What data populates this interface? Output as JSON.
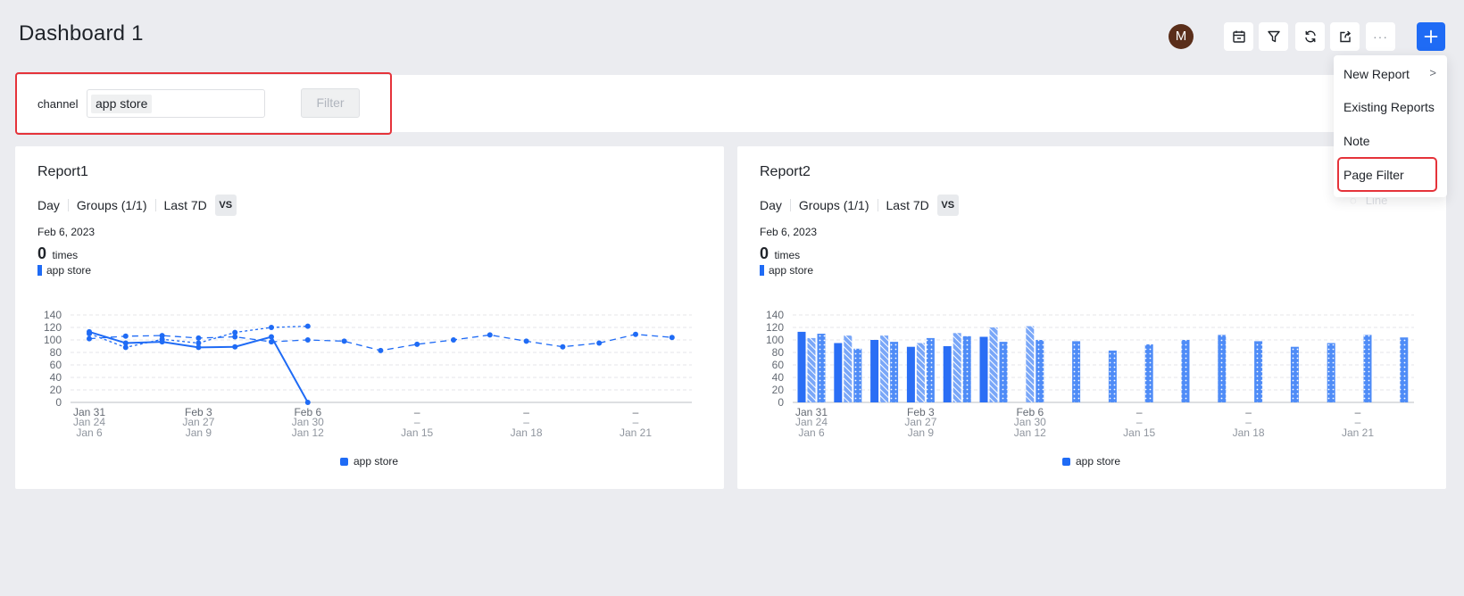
{
  "header": {
    "title": "Dashboard 1",
    "avatar_initial": "M",
    "toolbar": [
      {
        "icon": "calendar-icon"
      },
      {
        "icon": "filter-icon"
      },
      {
        "icon": "refresh-icon"
      },
      {
        "icon": "export-icon"
      },
      {
        "icon": "more-icon",
        "label": "···"
      }
    ],
    "add_label": "+"
  },
  "filter_bar": {
    "label": "channel",
    "selected_value": "app store",
    "filter_button": "Filter"
  },
  "menu": {
    "items": [
      "New Report",
      "Existing Reports",
      "Note",
      "Page Filter"
    ],
    "chevron": ">"
  },
  "reports": [
    {
      "title": "Report1",
      "options": {
        "granularity": "Day",
        "groups": "Groups (1/1)",
        "range": "Last 7D",
        "compare": "VS"
      },
      "date": "Feb 6, 2023",
      "metric_value": "0",
      "metric_unit": "times",
      "series_tag": "app store",
      "legend": "app store"
    },
    {
      "title": "Report2",
      "options": {
        "granularity": "Day",
        "groups": "Groups (1/1)",
        "range": "Last 7D",
        "compare": "VS"
      },
      "date": "Feb 6, 2023",
      "metric_value": "0",
      "metric_unit": "times",
      "series_tag": "app store",
      "legend": "app store",
      "ghost_controls": "Line"
    }
  ],
  "chart_data": [
    {
      "type": "line",
      "y_ticks": [
        0,
        20,
        40,
        60,
        80,
        100,
        120,
        140
      ],
      "ylim": [
        0,
        140
      ],
      "x_tick_labels": [
        {
          "l1": "Jan 31",
          "l2": "Jan 24",
          "l3": "Jan 6"
        },
        {
          "l1": "Feb 3",
          "l2": "Jan 27",
          "l3": "Jan 9"
        },
        {
          "l1": "Feb 6",
          "l2": "Jan 30",
          "l3": "Jan 12"
        },
        {
          "l1": "–",
          "l2": "–",
          "l3": "Jan 15"
        },
        {
          "l1": "–",
          "l2": "–",
          "l3": "Jan 18"
        },
        {
          "l1": "–",
          "l2": "–",
          "l3": "Jan 21"
        }
      ],
      "grid": true,
      "legend_position": "bottom",
      "series": [
        {
          "name": "app store",
          "style": "solid",
          "values": [
            113,
            95,
            97,
            88,
            89,
            105,
            0
          ]
        },
        {
          "name": "app store",
          "style": "short-dash",
          "values": [
            110,
            88,
            101,
            95,
            112,
            120,
            122
          ]
        },
        {
          "name": "app store",
          "style": "long-dash",
          "values": [
            102,
            106,
            107,
            103,
            105,
            97,
            100,
            98,
            83,
            93,
            100,
            108,
            98,
            89,
            95,
            109,
            104
          ]
        }
      ]
    },
    {
      "type": "bar",
      "y_ticks": [
        0,
        20,
        40,
        60,
        80,
        100,
        120,
        140
      ],
      "ylim": [
        0,
        140
      ],
      "x_tick_labels": [
        {
          "l1": "Jan 31",
          "l2": "Jan 24",
          "l3": "Jan 6"
        },
        {
          "l1": "Feb 3",
          "l2": "Jan 27",
          "l3": "Jan 9"
        },
        {
          "l1": "Feb 6",
          "l2": "Jan 30",
          "l3": "Jan 12"
        },
        {
          "l1": "–",
          "l2": "–",
          "l3": "Jan 15"
        },
        {
          "l1": "–",
          "l2": "–",
          "l3": "Jan 18"
        },
        {
          "l1": "–",
          "l2": "–",
          "l3": "Jan 21"
        }
      ],
      "grid": true,
      "legend_position": "bottom",
      "series": [
        {
          "name": "app store",
          "style": "solid",
          "values": [
            113,
            95,
            100,
            89,
            90,
            105,
            null
          ]
        },
        {
          "name": "app store",
          "style": "hatched",
          "values": [
            103,
            107,
            107,
            95,
            111,
            120,
            122
          ]
        },
        {
          "name": "app store",
          "style": "dotted",
          "values": [
            110,
            86,
            97,
            103,
            106,
            97,
            100,
            98,
            83,
            93,
            100,
            108,
            98,
            89,
            95,
            108,
            104
          ]
        }
      ]
    }
  ],
  "colors": {
    "accent": "#1f6bf5",
    "highlight": "#e5333a",
    "background": "#ebecf0"
  }
}
